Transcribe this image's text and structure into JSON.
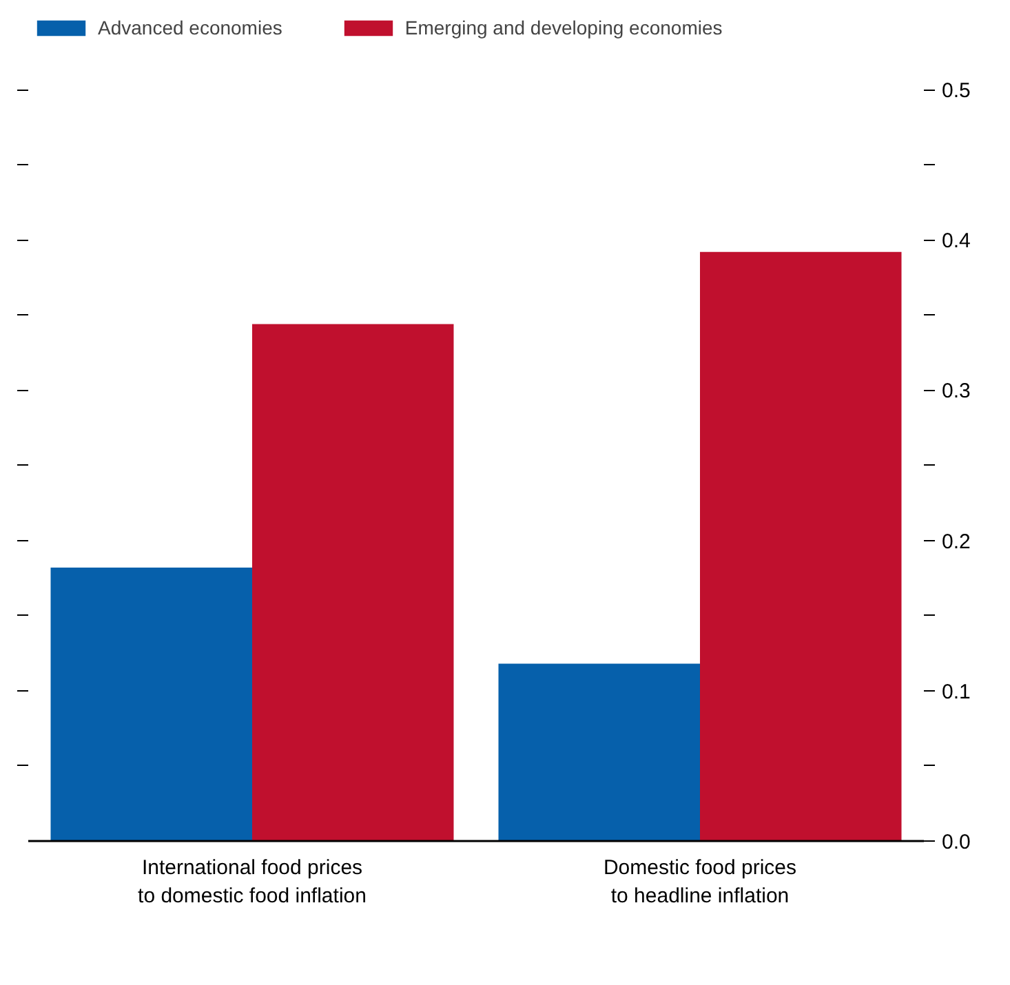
{
  "chart_data": {
    "type": "bar",
    "categories": [
      "International food prices\nto domestic food inflation",
      "Domestic food prices\nto headline inflation"
    ],
    "series": [
      {
        "name": "Advanced economies",
        "color": "#0660ab",
        "values": [
          0.182,
          0.118
        ],
        "axis": "y2"
      },
      {
        "name": "Emerging and developing economies",
        "color": "#c0102e",
        "values": [
          0.344,
          0.392
        ],
        "axis": "y2"
      }
    ],
    "y2lim": [
      0,
      0.5
    ],
    "y2ticks": [
      "0.0",
      {
        "value": 0.05,
        "label": null
      },
      0.1,
      {
        "value": 0.15,
        "label": null
      },
      0.2,
      {
        "value": 0.25,
        "label": null
      },
      0.3,
      {
        "value": 0.35,
        "label": null
      },
      0.4,
      {
        "value": 0.45,
        "label": null
      },
      0.5
    ],
    "grid": false,
    "legend": "top left"
  }
}
